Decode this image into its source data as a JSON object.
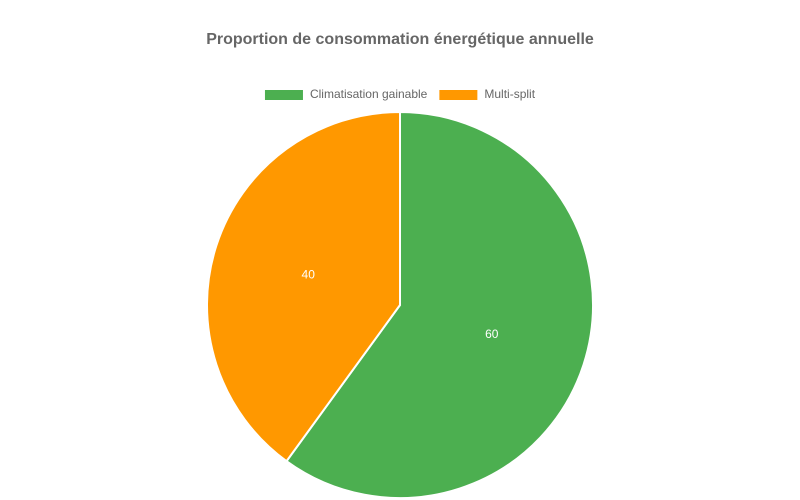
{
  "chart_data": {
    "type": "pie",
    "title": "Proportion de consommation énergétique annuelle",
    "categories": [
      "Climatisation gainable",
      "Multi-split"
    ],
    "values": [
      60,
      40
    ],
    "colors": [
      "#4caf50",
      "#ff9800"
    ],
    "legend": "top"
  }
}
